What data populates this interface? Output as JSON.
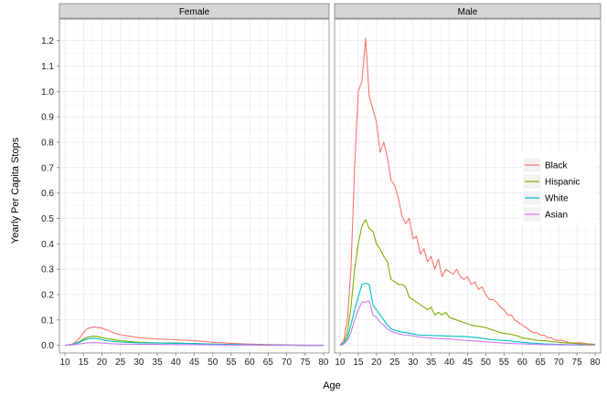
{
  "chart_data": {
    "type": "line",
    "xlabel": "Age",
    "ylabel": "Yearly Per Capita Stops",
    "xlim": [
      8.5,
      81.5
    ],
    "ylim": [
      -0.03,
      1.285
    ],
    "x_ticks": [
      10,
      15,
      20,
      25,
      30,
      35,
      40,
      45,
      50,
      55,
      60,
      65,
      70,
      75,
      80
    ],
    "y_ticks": [
      0.0,
      0.1,
      0.2,
      0.3,
      0.4,
      0.5,
      0.6,
      0.7,
      0.8,
      0.9,
      1.0,
      1.1,
      1.2
    ],
    "y_tick_labels": [
      "0.0",
      "0.1",
      "0.2",
      "0.3",
      "0.4",
      "0.5",
      "0.6",
      "0.7",
      "0.8",
      "0.9",
      "1.0",
      "1.1",
      "1.2"
    ],
    "grid": true,
    "legend_position": "right-center",
    "colors": {
      "Black": "#F8766D",
      "Hispanic": "#7CAE00",
      "White": "#00BFC4",
      "Asian": "#C77CFF"
    },
    "panels": [
      {
        "label": "Female",
        "series": [
          {
            "name": "Black",
            "x": [
              10,
              12,
              13,
              14,
              15,
              16,
              17,
              18,
              19,
              20,
              21,
              22,
              23,
              25,
              28,
              30,
              35,
              40,
              45,
              50,
              55,
              60,
              65,
              70,
              75,
              80
            ],
            "y": [
              0.0,
              0.005,
              0.015,
              0.03,
              0.05,
              0.065,
              0.07,
              0.072,
              0.07,
              0.068,
              0.062,
              0.058,
              0.05,
              0.042,
              0.035,
              0.03,
              0.025,
              0.022,
              0.018,
              0.012,
              0.008,
              0.005,
              0.003,
              0.002,
              0.001,
              0.001
            ]
          },
          {
            "name": "Hispanic",
            "x": [
              10,
              12,
              14,
              15,
              16,
              17,
              18,
              19,
              20,
              22,
              25,
              30,
              35,
              40,
              45,
              50,
              55,
              60,
              65,
              70,
              75,
              80
            ],
            "y": [
              0.0,
              0.003,
              0.015,
              0.025,
              0.032,
              0.035,
              0.036,
              0.034,
              0.03,
              0.025,
              0.018,
              0.012,
              0.01,
              0.009,
              0.007,
              0.005,
              0.003,
              0.002,
              0.001,
              0.001,
              0.0,
              0.0
            ]
          },
          {
            "name": "White",
            "x": [
              10,
              12,
              14,
              15,
              16,
              17,
              18,
              19,
              20,
              22,
              25,
              30,
              35,
              40,
              45,
              50,
              55,
              60,
              65,
              70,
              75,
              80
            ],
            "y": [
              0.0,
              0.003,
              0.012,
              0.02,
              0.025,
              0.027,
              0.028,
              0.026,
              0.022,
              0.017,
              0.013,
              0.01,
              0.009,
              0.008,
              0.007,
              0.005,
              0.003,
              0.002,
              0.001,
              0.001,
              0.0,
              0.0
            ]
          },
          {
            "name": "Asian",
            "x": [
              10,
              12,
              14,
              16,
              18,
              20,
              22,
              25,
              30,
              35,
              40,
              45,
              50,
              55,
              60,
              65,
              70,
              75,
              80
            ],
            "y": [
              0.0,
              0.002,
              0.006,
              0.01,
              0.011,
              0.009,
              0.007,
              0.005,
              0.004,
              0.004,
              0.003,
              0.003,
              0.002,
              0.001,
              0.001,
              0.0,
              0.0,
              0.0,
              0.0
            ]
          }
        ]
      },
      {
        "label": "Male",
        "series": [
          {
            "name": "Black",
            "x": [
              10,
              11,
              12,
              13,
              14,
              15,
              16,
              17,
              18,
              19,
              20,
              21,
              22,
              23,
              24,
              25,
              26,
              27,
              28,
              29,
              30,
              31,
              32,
              33,
              34,
              35,
              36,
              37,
              38,
              39,
              40,
              41,
              42,
              43,
              44,
              45,
              46,
              47,
              48,
              49,
              50,
              51,
              52,
              53,
              54,
              55,
              56,
              57,
              58,
              59,
              60,
              61,
              62,
              63,
              64,
              65,
              66,
              67,
              68,
              69,
              70,
              71,
              72,
              73,
              74,
              75,
              76,
              77,
              78,
              79,
              80
            ],
            "y": [
              0.0,
              0.02,
              0.1,
              0.3,
              0.7,
              1.0,
              1.04,
              1.21,
              0.98,
              0.93,
              0.88,
              0.76,
              0.8,
              0.74,
              0.65,
              0.63,
              0.58,
              0.51,
              0.48,
              0.5,
              0.42,
              0.43,
              0.36,
              0.38,
              0.33,
              0.35,
              0.3,
              0.34,
              0.27,
              0.3,
              0.29,
              0.28,
              0.3,
              0.27,
              0.26,
              0.27,
              0.24,
              0.25,
              0.22,
              0.23,
              0.2,
              0.18,
              0.18,
              0.17,
              0.15,
              0.14,
              0.12,
              0.12,
              0.1,
              0.09,
              0.08,
              0.07,
              0.06,
              0.05,
              0.05,
              0.04,
              0.04,
              0.03,
              0.03,
              0.02,
              0.02,
              0.02,
              0.015,
              0.01,
              0.01,
              0.01,
              0.01,
              0.008,
              0.006,
              0.005,
              0.004
            ]
          },
          {
            "name": "Hispanic",
            "x": [
              10,
              11,
              12,
              13,
              14,
              15,
              16,
              17,
              18,
              19,
              20,
              21,
              22,
              23,
              24,
              25,
              26,
              27,
              28,
              29,
              30,
              32,
              34,
              35,
              36,
              37,
              38,
              39,
              40,
              42,
              44,
              46,
              48,
              50,
              52,
              54,
              56,
              58,
              60,
              62,
              64,
              66,
              68,
              70,
              72,
              74,
              76,
              78,
              80
            ],
            "y": [
              0.0,
              0.01,
              0.05,
              0.15,
              0.3,
              0.4,
              0.47,
              0.495,
              0.46,
              0.45,
              0.4,
              0.38,
              0.35,
              0.33,
              0.26,
              0.25,
              0.24,
              0.24,
              0.23,
              0.19,
              0.18,
              0.16,
              0.14,
              0.15,
              0.12,
              0.13,
              0.12,
              0.13,
              0.11,
              0.1,
              0.09,
              0.08,
              0.075,
              0.07,
              0.06,
              0.05,
              0.045,
              0.04,
              0.03,
              0.025,
              0.02,
              0.018,
              0.015,
              0.012,
              0.01,
              0.008,
              0.006,
              0.005,
              0.004
            ]
          },
          {
            "name": "White",
            "x": [
              10,
              11,
              12,
              13,
              14,
              15,
              16,
              17,
              18,
              19,
              20,
              21,
              22,
              23,
              24,
              25,
              26,
              28,
              30,
              32,
              34,
              36,
              38,
              40,
              42,
              44,
              46,
              48,
              50,
              52,
              54,
              56,
              58,
              60,
              62,
              64,
              66,
              68,
              70,
              72,
              74,
              76,
              78,
              80
            ],
            "y": [
              0.0,
              0.01,
              0.03,
              0.08,
              0.14,
              0.19,
              0.24,
              0.245,
              0.24,
              0.16,
              0.14,
              0.12,
              0.1,
              0.08,
              0.065,
              0.06,
              0.055,
              0.05,
              0.045,
              0.04,
              0.04,
              0.038,
              0.038,
              0.036,
              0.035,
              0.035,
              0.032,
              0.03,
              0.025,
              0.022,
              0.02,
              0.018,
              0.015,
              0.012,
              0.01,
              0.008,
              0.006,
              0.005,
              0.004,
              0.003,
              0.002,
              0.002,
              0.001,
              0.001
            ]
          },
          {
            "name": "Asian",
            "x": [
              10,
              11,
              12,
              13,
              14,
              15,
              16,
              17,
              18,
              19,
              20,
              21,
              22,
              23,
              24,
              25,
              26,
              28,
              30,
              32,
              34,
              36,
              38,
              40,
              42,
              44,
              46,
              48,
              50,
              52,
              54,
              56,
              58,
              60,
              62,
              64,
              66,
              68,
              70,
              72,
              74,
              76,
              78,
              80
            ],
            "y": [
              0.0,
              0.005,
              0.02,
              0.05,
              0.1,
              0.14,
              0.17,
              0.17,
              0.175,
              0.12,
              0.11,
              0.09,
              0.08,
              0.065,
              0.055,
              0.05,
              0.045,
              0.04,
              0.038,
              0.032,
              0.03,
              0.028,
              0.026,
              0.025,
              0.022,
              0.02,
              0.018,
              0.016,
              0.014,
              0.012,
              0.01,
              0.008,
              0.007,
              0.006,
              0.005,
              0.004,
              0.003,
              0.003,
              0.002,
              0.002,
              0.001,
              0.001,
              0.001,
              0.001
            ]
          }
        ]
      }
    ]
  }
}
